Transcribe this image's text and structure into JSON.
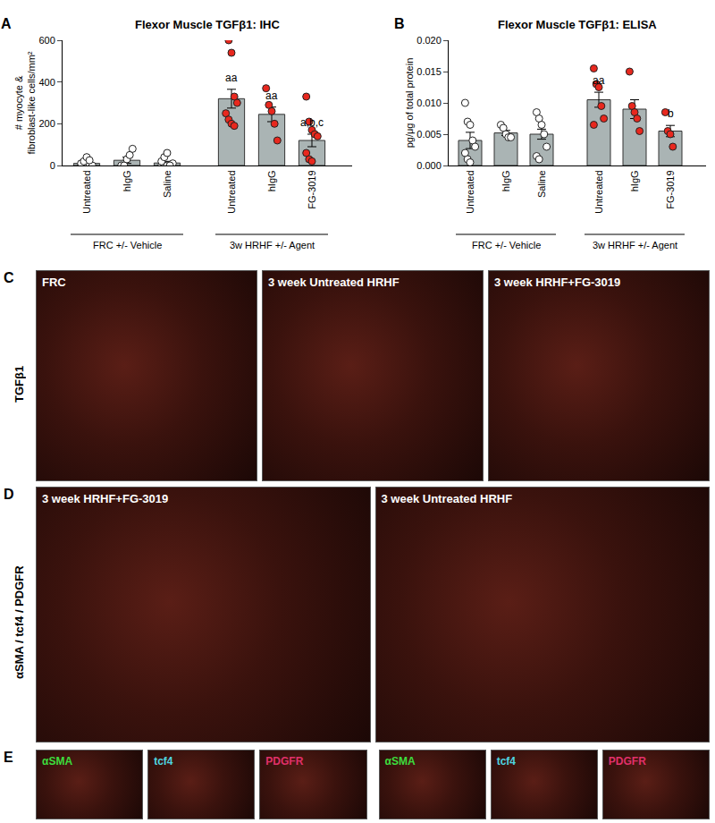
{
  "chart_data": [
    {
      "type": "bar",
      "panel": "A",
      "title": "Flexor Muscle TGFβ1: IHC",
      "y_label": "# myocyte &\nfibroblast-like cells/mm²",
      "ylim": [
        0,
        600
      ],
      "yticks": [
        0,
        200,
        400,
        600
      ],
      "color": "#aab4b4",
      "groups": [
        {
          "label": "FRC +/- Vehicle",
          "color": "#ffffff",
          "categories": [
            "Untreated",
            "hIgG",
            "Saline"
          ],
          "values": [
            10,
            25,
            12
          ],
          "errors": [
            5,
            15,
            8
          ],
          "points": [
            [
              0,
              0,
              0,
              0,
              0,
              10,
              20,
              40,
              25
            ],
            [
              0,
              0,
              30,
              50,
              80
            ],
            [
              0,
              0,
              0,
              0,
              10,
              20,
              40,
              60,
              0
            ]
          ],
          "significance": [
            null,
            null,
            null
          ]
        },
        {
          "label": "3w HRHF +/- Agent",
          "color": "#e8281e",
          "categories": [
            "Untreated",
            "hIgG",
            "FG-3019"
          ],
          "values": [
            320,
            245,
            120
          ],
          "errors": [
            45,
            35,
            30
          ],
          "points": [
            [
              620,
              600,
              540,
              330,
              300,
              250,
              220,
              200,
              190
            ],
            [
              370,
              290,
              260,
              200,
              120
            ],
            [
              330,
              210,
              170,
              150,
              140,
              60,
              30,
              20
            ]
          ],
          "significance": [
            "aa",
            "aa",
            "a,b,c"
          ]
        }
      ]
    },
    {
      "type": "bar",
      "panel": "B",
      "title": "Flexor Muscle TGFβ1: ELISA",
      "y_label": "pg/μg of total protein",
      "ylim": [
        0,
        0.02
      ],
      "yticks": [
        {
          "value": 0,
          "label": "0.000"
        },
        {
          "value": 0.005,
          "label": "0.005"
        },
        {
          "value": 0.01,
          "label": "0.010"
        },
        {
          "value": 0.015,
          "label": "0.015"
        },
        {
          "value": 0.02,
          "label": "0.020"
        }
      ],
      "color": "#aab4b4",
      "groups": [
        {
          "label": "FRC +/- Vehicle",
          "color": "#ffffff",
          "categories": [
            "Untreated",
            "hIgG",
            "Saline"
          ],
          "values": [
            0.004,
            0.0052,
            0.005
          ],
          "errors": [
            0.0013,
            0.0004,
            0.0008
          ],
          "points": [
            [
              0.01,
              0.007,
              0.0065,
              0.004,
              0.003,
              0.002,
              0.001,
              0.0005
            ],
            [
              0.0065,
              0.006,
              0.005,
              0.0045,
              0.0045
            ],
            [
              0.0085,
              0.0075,
              0.0065,
              0.005,
              0.003,
              0.0015,
              0.001
            ]
          ],
          "significance": [
            null,
            null,
            null
          ]
        },
        {
          "label": "3w HRHF +/- Agent",
          "color": "#e8281e",
          "categories": [
            "Untreated",
            "hIgG",
            "FG-3019"
          ],
          "values": [
            0.0105,
            0.009,
            0.0055
          ],
          "errors": [
            0.0012,
            0.0015,
            0.0009
          ],
          "points": [
            [
              0.0155,
              0.013,
              0.0125,
              0.0095,
              0.0075,
              0.0065
            ],
            [
              0.015,
              0.0095,
              0.0085,
              0.0075,
              0.0055
            ],
            [
              0.0085,
              0.0055,
              0.005,
              0.003
            ]
          ],
          "significance": [
            "aa",
            null,
            "b"
          ]
        }
      ]
    }
  ],
  "image_panels": [
    {
      "panel": "C",
      "row_label": "TGFβ1",
      "images": [
        {
          "label": "FRC"
        },
        {
          "label": "3 week Untreated HRHF"
        },
        {
          "label": "3 week HRHF+FG-3019"
        }
      ]
    },
    {
      "panel": "D",
      "row_label": "αSMA / tcf4 / PDGFR",
      "images": [
        {
          "label": "3 week HRHF+FG-3019"
        },
        {
          "label": "3 week Untreated HRHF"
        }
      ]
    },
    {
      "panel": "E",
      "images": [
        {
          "label": "αSMA",
          "color": "#3ddc3d"
        },
        {
          "label": "tcf4",
          "color": "#4fd6e0"
        },
        {
          "label": "PDGFR",
          "color": "#e0306a"
        },
        {
          "label": "αSMA",
          "color": "#3ddc3d"
        },
        {
          "label": "tcf4",
          "color": "#4fd6e0"
        },
        {
          "label": "PDGFR",
          "color": "#e0306a"
        }
      ]
    }
  ]
}
